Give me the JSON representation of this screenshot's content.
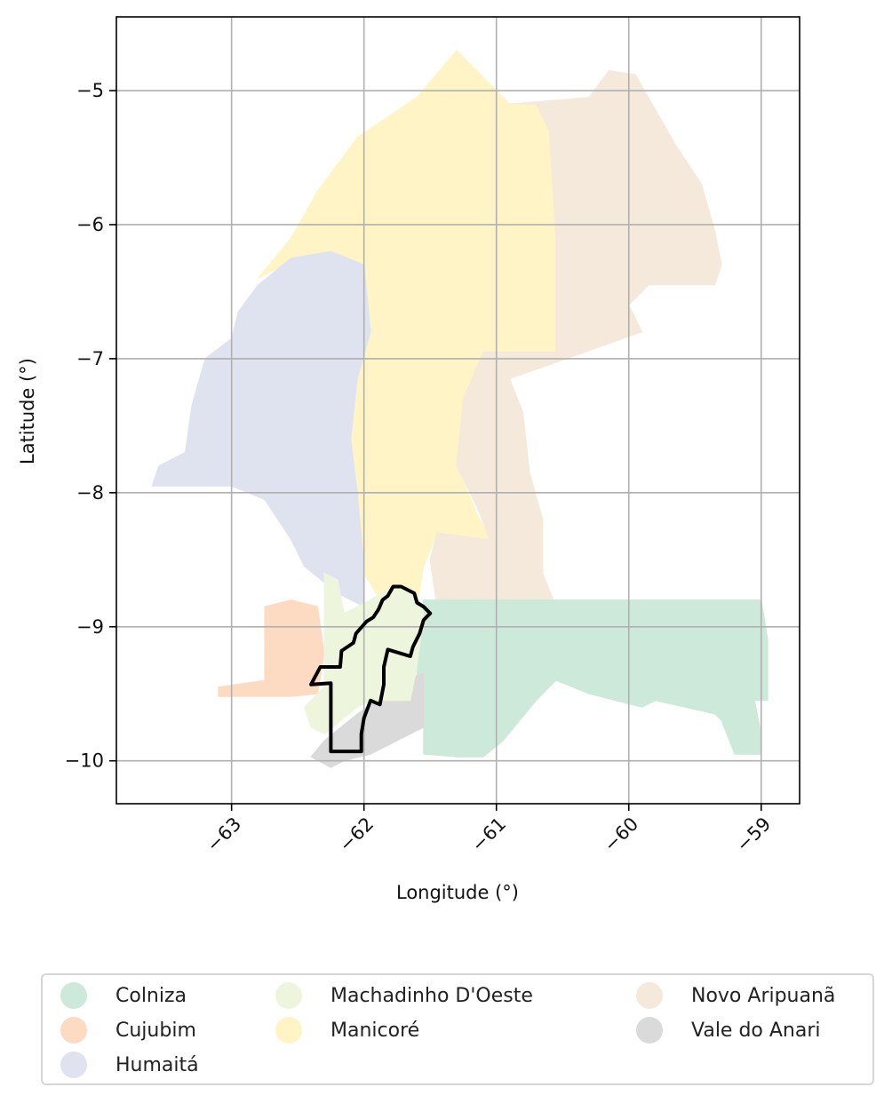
{
  "axes": {
    "xlabel": "Longitude (°)",
    "ylabel": "Latitude (°)",
    "xlim": [
      -63.87,
      -58.71
    ],
    "ylim": [
      -10.32,
      -4.45
    ],
    "xticks": [
      -63,
      -62,
      -61,
      -60,
      -59
    ],
    "xtick_labels": [
      "−63",
      "−62",
      "−61",
      "−60",
      "−59"
    ],
    "yticks": [
      -5,
      -6,
      -7,
      -8,
      -9,
      -10
    ],
    "ytick_labels": [
      "−5",
      "−6",
      "−7",
      "−8",
      "−9",
      "−10"
    ],
    "grid": true
  },
  "legend": {
    "placement": "bottom",
    "items": [
      {
        "label": "Colniza",
        "color": "#cce9d9"
      },
      {
        "label": "Cujubim",
        "color": "#fddbc3"
      },
      {
        "label": "Humaitá",
        "color": "#dfe3f0"
      },
      {
        "label": "Machadinho D'Oeste",
        "color": "#edf6dc"
      },
      {
        "label": "Manicoré",
        "color": "#fff4c5"
      },
      {
        "label": "Novo Aripuanã",
        "color": "#f4e9db"
      },
      {
        "label": "Vale do Anari",
        "color": "#dadada"
      }
    ]
  },
  "regions": [
    {
      "name": "Manicoré",
      "color": "#fff4c5",
      "coords": [
        [
          -62.8,
          -6.4
        ],
        [
          -62.55,
          -6.1
        ],
        [
          -62.35,
          -5.75
        ],
        [
          -62.05,
          -5.35
        ],
        [
          -61.6,
          -5.05
        ],
        [
          -61.3,
          -4.7
        ],
        [
          -60.9,
          -5.1
        ],
        [
          -60.7,
          -5.1
        ],
        [
          -60.6,
          -5.3
        ],
        [
          -60.55,
          -6.1
        ],
        [
          -60.55,
          -6.95
        ],
        [
          -61.1,
          -6.95
        ],
        [
          -61.25,
          -7.3
        ],
        [
          -61.3,
          -7.8
        ],
        [
          -61.15,
          -8.15
        ],
        [
          -61.05,
          -8.35
        ],
        [
          -61.45,
          -8.3
        ],
        [
          -61.55,
          -8.55
        ],
        [
          -61.6,
          -8.85
        ],
        [
          -61.85,
          -8.85
        ],
        [
          -62.0,
          -8.6
        ],
        [
          -62.05,
          -8.0
        ],
        [
          -62.1,
          -7.6
        ],
        [
          -62.05,
          -7.15
        ],
        [
          -61.95,
          -6.8
        ],
        [
          -62.0,
          -6.3
        ],
        [
          -62.25,
          -6.2
        ],
        [
          -62.5,
          -6.25
        ]
      ]
    },
    {
      "name": "Novo Aripuanã",
      "color": "#f4e9db",
      "coords": [
        [
          -60.9,
          -5.1
        ],
        [
          -60.3,
          -5.05
        ],
        [
          -60.15,
          -4.85
        ],
        [
          -59.95,
          -4.88
        ],
        [
          -59.65,
          -5.4
        ],
        [
          -59.45,
          -5.7
        ],
        [
          -59.35,
          -6.05
        ],
        [
          -59.3,
          -6.3
        ],
        [
          -59.35,
          -6.45
        ],
        [
          -59.85,
          -6.45
        ],
        [
          -60.0,
          -6.6
        ],
        [
          -59.9,
          -6.8
        ],
        [
          -60.9,
          -7.15
        ],
        [
          -60.8,
          -7.4
        ],
        [
          -60.75,
          -7.85
        ],
        [
          -60.65,
          -8.2
        ],
        [
          -60.65,
          -8.6
        ],
        [
          -60.55,
          -8.85
        ],
        [
          -61.45,
          -8.85
        ],
        [
          -61.5,
          -8.5
        ],
        [
          -61.45,
          -8.3
        ],
        [
          -61.05,
          -8.35
        ],
        [
          -61.15,
          -8.1
        ],
        [
          -61.3,
          -7.8
        ],
        [
          -61.25,
          -7.3
        ],
        [
          -61.1,
          -6.95
        ],
        [
          -60.55,
          -6.95
        ],
        [
          -60.55,
          -6.1
        ],
        [
          -60.6,
          -5.3
        ],
        [
          -60.7,
          -5.1
        ]
      ]
    },
    {
      "name": "Humaitá",
      "color": "#dfe3f0",
      "coords": [
        [
          -62.8,
          -6.45
        ],
        [
          -62.55,
          -6.25
        ],
        [
          -62.25,
          -6.2
        ],
        [
          -62.0,
          -6.3
        ],
        [
          -61.95,
          -6.8
        ],
        [
          -62.05,
          -7.15
        ],
        [
          -62.1,
          -7.6
        ],
        [
          -62.05,
          -8.0
        ],
        [
          -62.0,
          -8.55
        ],
        [
          -62.0,
          -8.85
        ],
        [
          -62.2,
          -8.75
        ],
        [
          -62.45,
          -8.55
        ],
        [
          -62.55,
          -8.35
        ],
        [
          -62.75,
          -8.05
        ],
        [
          -63.0,
          -7.95
        ],
        [
          -63.3,
          -7.95
        ],
        [
          -63.6,
          -7.95
        ],
        [
          -63.55,
          -7.8
        ],
        [
          -63.35,
          -7.7
        ],
        [
          -63.3,
          -7.35
        ],
        [
          -63.2,
          -7.0
        ],
        [
          -63.0,
          -6.85
        ],
        [
          -62.95,
          -6.65
        ]
      ]
    },
    {
      "name": "Colniza",
      "color": "#cce9d9",
      "coords": [
        [
          -61.55,
          -8.8
        ],
        [
          -59.0,
          -8.8
        ],
        [
          -58.95,
          -9.1
        ],
        [
          -58.95,
          -9.55
        ],
        [
          -59.05,
          -9.55
        ],
        [
          -59.0,
          -9.8
        ],
        [
          -59.0,
          -9.95
        ],
        [
          -59.2,
          -9.95
        ],
        [
          -59.3,
          -9.7
        ],
        [
          -59.35,
          -9.65
        ],
        [
          -59.8,
          -9.55
        ],
        [
          -59.9,
          -9.6
        ],
        [
          -60.1,
          -9.55
        ],
        [
          -60.3,
          -9.5
        ],
        [
          -60.55,
          -9.4
        ],
        [
          -60.7,
          -9.55
        ],
        [
          -60.95,
          -9.85
        ],
        [
          -61.1,
          -9.97
        ],
        [
          -61.3,
          -9.97
        ],
        [
          -61.55,
          -9.95
        ],
        [
          -61.55,
          -9.7
        ],
        [
          -61.6,
          -9.4
        ],
        [
          -61.6,
          -9.1
        ]
      ]
    },
    {
      "name": "Cujubim",
      "color": "#fddbc3",
      "coords": [
        [
          -62.75,
          -8.85
        ],
        [
          -62.55,
          -8.8
        ],
        [
          -62.35,
          -8.85
        ],
        [
          -62.3,
          -9.2
        ],
        [
          -62.35,
          -9.5
        ],
        [
          -62.55,
          -9.52
        ],
        [
          -63.1,
          -9.52
        ],
        [
          -63.1,
          -9.45
        ],
        [
          -62.75,
          -9.4
        ],
        [
          -62.75,
          -9.0
        ]
      ]
    },
    {
      "name": "Vale do Anari",
      "color": "#dadada",
      "coords": [
        [
          -61.55,
          -9.35
        ],
        [
          -61.75,
          -9.4
        ],
        [
          -61.9,
          -9.55
        ],
        [
          -62.05,
          -9.65
        ],
        [
          -62.3,
          -9.85
        ],
        [
          -62.4,
          -9.97
        ],
        [
          -62.25,
          -10.05
        ],
        [
          -62.15,
          -10.0
        ],
        [
          -61.95,
          -9.95
        ],
        [
          -61.75,
          -9.85
        ],
        [
          -61.55,
          -9.75
        ]
      ]
    },
    {
      "name": "Machadinho D'Oeste",
      "color": "#edf6dc",
      "coords": [
        [
          -62.3,
          -8.6
        ],
        [
          -62.2,
          -8.65
        ],
        [
          -62.15,
          -8.9
        ],
        [
          -62.05,
          -8.85
        ],
        [
          -61.95,
          -8.8
        ],
        [
          -61.8,
          -8.7
        ],
        [
          -61.6,
          -8.75
        ],
        [
          -61.55,
          -8.9
        ],
        [
          -61.6,
          -9.3
        ],
        [
          -61.65,
          -9.55
        ],
        [
          -61.95,
          -9.55
        ],
        [
          -62.05,
          -9.6
        ],
        [
          -62.3,
          -9.8
        ],
        [
          -62.4,
          -9.75
        ],
        [
          -62.45,
          -9.6
        ],
        [
          -62.3,
          -9.45
        ],
        [
          -62.3,
          -9.0
        ]
      ]
    }
  ],
  "highlight_outline": {
    "color": "#000000",
    "coords": [
      [
        -62.4,
        -9.43
      ],
      [
        -62.33,
        -9.3
      ],
      [
        -62.18,
        -9.3
      ],
      [
        -62.17,
        -9.18
      ],
      [
        -62.08,
        -9.12
      ],
      [
        -62.06,
        -9.05
      ],
      [
        -61.98,
        -8.96
      ],
      [
        -61.93,
        -8.93
      ],
      [
        -61.89,
        -8.87
      ],
      [
        -61.86,
        -8.8
      ],
      [
        -61.82,
        -8.77
      ],
      [
        -61.78,
        -8.7
      ],
      [
        -61.72,
        -8.7
      ],
      [
        -61.68,
        -8.72
      ],
      [
        -61.62,
        -8.75
      ],
      [
        -61.6,
        -8.82
      ],
      [
        -61.55,
        -8.85
      ],
      [
        -61.5,
        -8.9
      ],
      [
        -61.55,
        -8.95
      ],
      [
        -61.58,
        -9.05
      ],
      [
        -61.63,
        -9.15
      ],
      [
        -61.65,
        -9.22
      ],
      [
        -61.82,
        -9.17
      ],
      [
        -61.85,
        -9.3
      ],
      [
        -61.85,
        -9.43
      ],
      [
        -61.88,
        -9.58
      ],
      [
        -61.95,
        -9.55
      ],
      [
        -62.0,
        -9.68
      ],
      [
        -62.02,
        -9.8
      ],
      [
        -62.02,
        -9.93
      ],
      [
        -62.25,
        -9.93
      ],
      [
        -62.25,
        -9.78
      ],
      [
        -62.25,
        -9.42
      ]
    ]
  }
}
